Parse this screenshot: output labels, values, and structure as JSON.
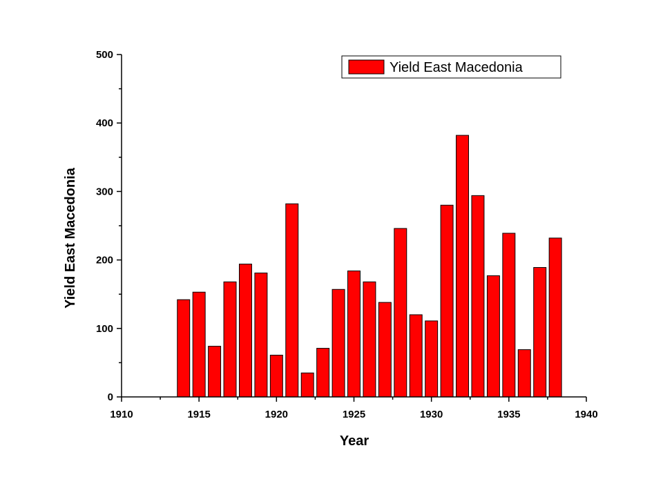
{
  "chart_data": {
    "type": "bar",
    "title": "",
    "xlabel": "Year",
    "ylabel": "Yield East Macedonia",
    "xlim": [
      1910,
      1940
    ],
    "ylim": [
      0,
      500
    ],
    "x_ticks": [
      1910,
      1915,
      1920,
      1925,
      1930,
      1935,
      1940
    ],
    "y_ticks": [
      0,
      100,
      200,
      300,
      400,
      500
    ],
    "legend_position": "top-right",
    "grid": false,
    "bar_color": "#ff0000",
    "series": [
      {
        "name": "Yield East Macedonia",
        "x": [
          1914,
          1915,
          1916,
          1917,
          1918,
          1919,
          1920,
          1921,
          1922,
          1923,
          1924,
          1925,
          1926,
          1927,
          1928,
          1929,
          1930,
          1931,
          1932,
          1933,
          1934,
          1935,
          1936,
          1937,
          1938
        ],
        "values": [
          142,
          153,
          74,
          168,
          194,
          181,
          61,
          282,
          35,
          71,
          157,
          184,
          168,
          138,
          246,
          120,
          111,
          280,
          382,
          294,
          177,
          239,
          69,
          189,
          232
        ]
      }
    ]
  }
}
